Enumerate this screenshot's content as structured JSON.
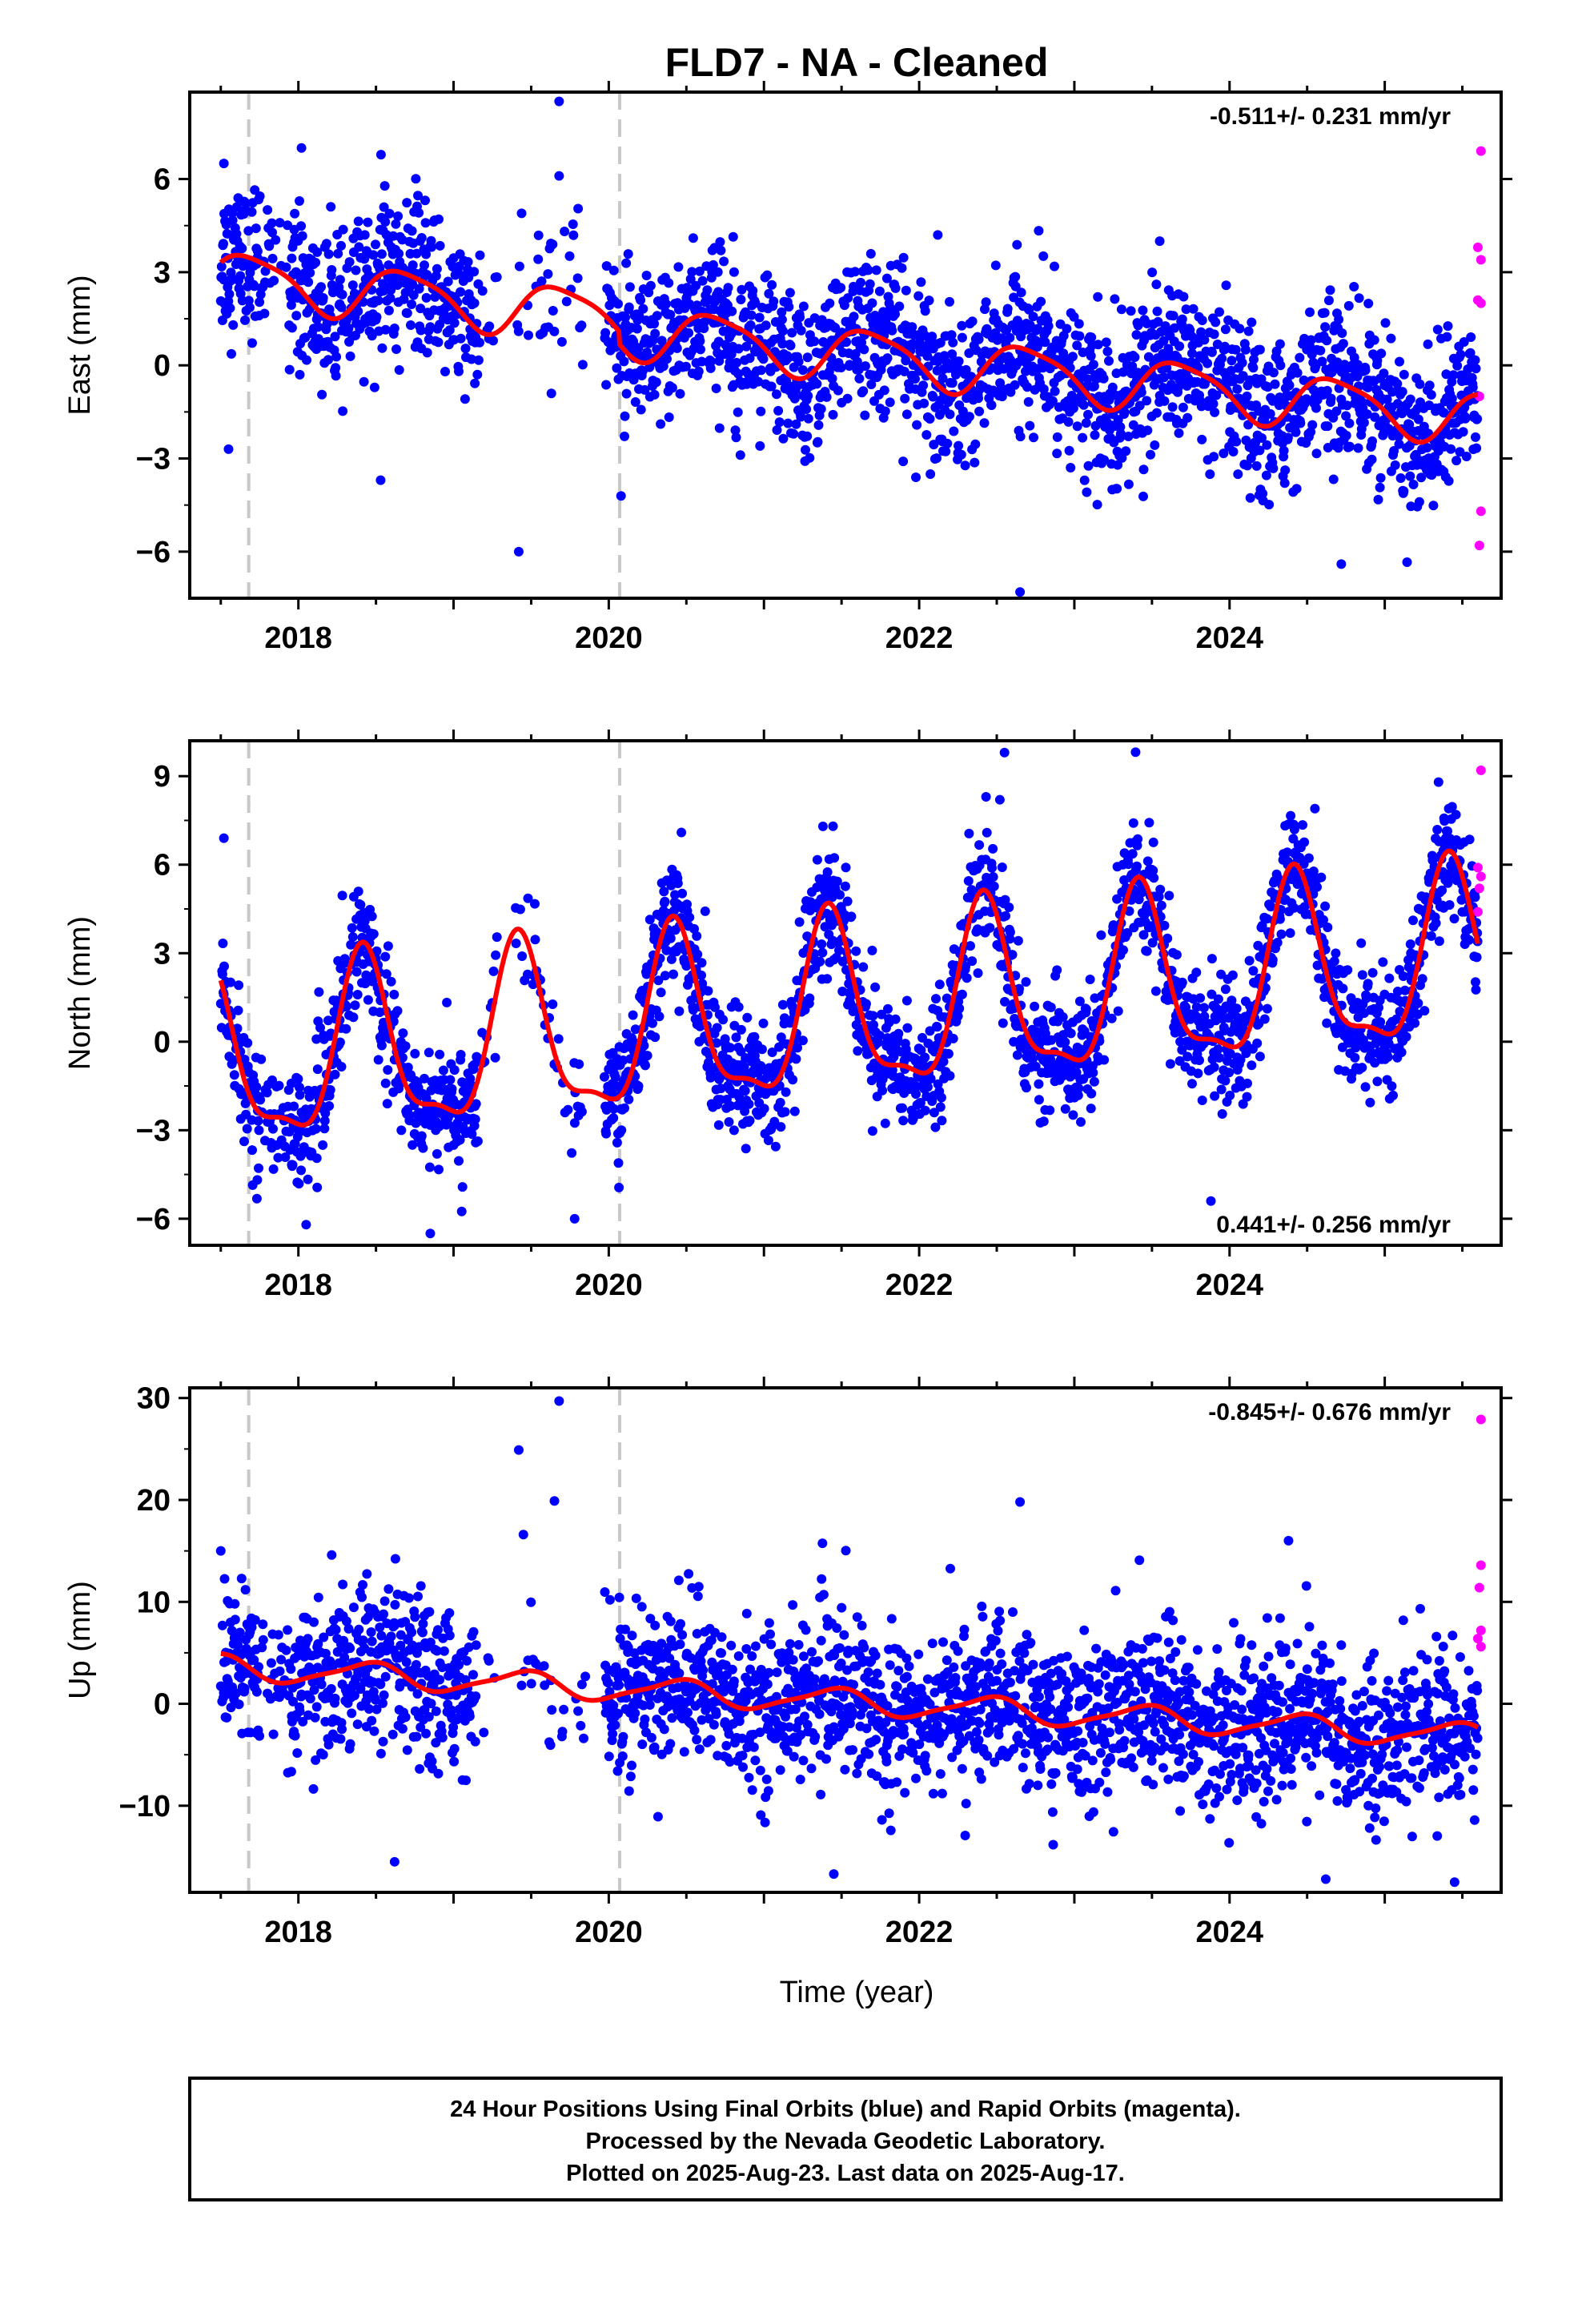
{
  "title": "FLD7  - NA - Cleaned",
  "xlabel": "Time (year)",
  "footer": {
    "line1": "24 Hour Positions Using Final Orbits (blue) and Rapid Orbits (magenta).",
    "line2": "Processed by the Nevada Geodetic Laboratory.",
    "line3": "Plotted on 2025-Aug-23. Last data on 2025-Aug-17."
  },
  "colors": {
    "final": "#0000ff",
    "rapid": "#ff00ff",
    "model": "#ff0000",
    "equipment_change": "#c8c8c8"
  },
  "chart_data": [
    {
      "type": "scatter",
      "component": "East",
      "ylabel": "East (mm)",
      "rate": "-0.511+/- 0.231 mm/yr",
      "rate_position": "top-right",
      "xlim": [
        2017.3,
        2025.75
      ],
      "ylim": [
        -7.5,
        8.8
      ],
      "yticks": [
        -6,
        -3,
        0,
        3,
        6
      ],
      "xticks": [
        2018,
        2020,
        2022,
        2024
      ],
      "vlines": [
        2017.68,
        2020.07
      ],
      "gaps": [
        [
          2019.28,
          2019.4
        ],
        [
          2019.85,
          2019.97
        ]
      ],
      "trend": {
        "y2018": 2.2,
        "slope": -0.511
      },
      "annual": [
        -0.28,
        -0.78
      ],
      "semiannual": [
        0.18,
        0.0
      ],
      "offsets": [
        {
          "t": 2020.07,
          "dy": 0.4
        }
      ],
      "noise": 1.2,
      "rapid_points": [
        {
          "x": 2025.62,
          "y": 6.9
        },
        {
          "x": 2025.6,
          "y": 3.8
        },
        {
          "x": 2025.62,
          "y": 3.4
        },
        {
          "x": 2025.6,
          "y": 2.1
        },
        {
          "x": 2025.62,
          "y": 2.0
        },
        {
          "x": 2025.61,
          "y": -1.0
        },
        {
          "x": 2025.62,
          "y": -4.7
        },
        {
          "x": 2025.61,
          "y": -5.8
        }
      ],
      "outliers": [
        {
          "x": 2017.52,
          "y": 6.5
        },
        {
          "x": 2018.02,
          "y": 7.0
        },
        {
          "x": 2019.68,
          "y": 8.5
        },
        {
          "x": 2019.68,
          "y": 6.1
        },
        {
          "x": 2017.55,
          "y": -2.7
        },
        {
          "x": 2018.53,
          "y": -3.7
        },
        {
          "x": 2019.42,
          "y": -6.0
        },
        {
          "x": 2022.65,
          "y": -7.3
        },
        {
          "x": 2024.72,
          "y": -6.4
        },
        {
          "x": 2022.12,
          "y": 4.2
        },
        {
          "x": 2023.55,
          "y": 4.0
        }
      ]
    },
    {
      "type": "scatter",
      "component": "North",
      "ylabel": "North (mm)",
      "rate": "0.441+/- 0.256 mm/yr",
      "rate_position": "bottom-right",
      "xlim": [
        2017.3,
        2025.75
      ],
      "ylim": [
        -6.9,
        10.2
      ],
      "yticks": [
        -6,
        -3,
        0,
        3,
        6,
        9
      ],
      "xticks": [
        2018,
        2020,
        2022,
        2024
      ],
      "vlines": [
        2017.68,
        2020.07
      ],
      "gaps": [
        [
          2019.28,
          2019.4
        ],
        [
          2019.85,
          2019.97
        ]
      ],
      "trend": {
        "y2018": -0.6,
        "slope": 0.441
      },
      "annual": [
        -2.55,
        1.35
      ],
      "semiannual": [
        0.35,
        -0.85
      ],
      "offsets": [],
      "noise": 1.0,
      "rapid_points": [
        {
          "x": 2025.62,
          "y": 9.2
        },
        {
          "x": 2025.6,
          "y": 5.9
        },
        {
          "x": 2025.62,
          "y": 5.6
        },
        {
          "x": 2025.61,
          "y": 5.2
        },
        {
          "x": 2025.6,
          "y": 4.4
        }
      ],
      "outliers": [
        {
          "x": 2017.52,
          "y": 6.9
        },
        {
          "x": 2022.55,
          "y": 9.8
        },
        {
          "x": 2022.52,
          "y": 8.2
        },
        {
          "x": 2024.55,
          "y": 7.9
        },
        {
          "x": 2018.05,
          "y": -6.2
        },
        {
          "x": 2018.85,
          "y": -6.5
        },
        {
          "x": 2019.78,
          "y": -6.0
        },
        {
          "x": 2023.88,
          "y": -5.4
        },
        {
          "x": 2021.38,
          "y": 7.3
        }
      ]
    },
    {
      "type": "scatter",
      "component": "Up",
      "ylabel": "Up (mm)",
      "rate": "-0.845+/- 0.676 mm/yr",
      "rate_position": "top-right",
      "xlim": [
        2017.3,
        2025.75
      ],
      "ylim": [
        -18.5,
        31
      ],
      "yticks": [
        -10,
        0,
        10,
        20,
        30
      ],
      "xticks": [
        2018,
        2020,
        2022,
        2024
      ],
      "vlines": [
        2017.68,
        2020.07
      ],
      "gaps": [
        [
          2019.28,
          2019.4
        ],
        [
          2019.85,
          2019.97
        ]
      ],
      "trend": {
        "y2018": 3.2,
        "slope": -0.845
      },
      "annual": [
        -1.1,
        0.4
      ],
      "semiannual": [
        0.2,
        0.2
      ],
      "offsets": [],
      "noise": 3.8,
      "rapid_points": [
        {
          "x": 2025.62,
          "y": 27.9
        },
        {
          "x": 2025.62,
          "y": 13.6
        },
        {
          "x": 2025.61,
          "y": 11.4
        },
        {
          "x": 2025.62,
          "y": 7.2
        },
        {
          "x": 2025.6,
          "y": 6.4
        },
        {
          "x": 2025.62,
          "y": 5.6
        }
      ],
      "outliers": [
        {
          "x": 2019.68,
          "y": 29.7
        },
        {
          "x": 2019.42,
          "y": 24.9
        },
        {
          "x": 2019.65,
          "y": 19.9
        },
        {
          "x": 2019.45,
          "y": 16.6
        },
        {
          "x": 2022.65,
          "y": 19.8
        },
        {
          "x": 2024.38,
          "y": 16.0
        },
        {
          "x": 2018.62,
          "y": -15.5
        },
        {
          "x": 2021.45,
          "y": -16.7
        },
        {
          "x": 2024.62,
          "y": -17.2
        },
        {
          "x": 2025.45,
          "y": -17.5
        },
        {
          "x": 2017.5,
          "y": 15.0
        }
      ]
    }
  ]
}
